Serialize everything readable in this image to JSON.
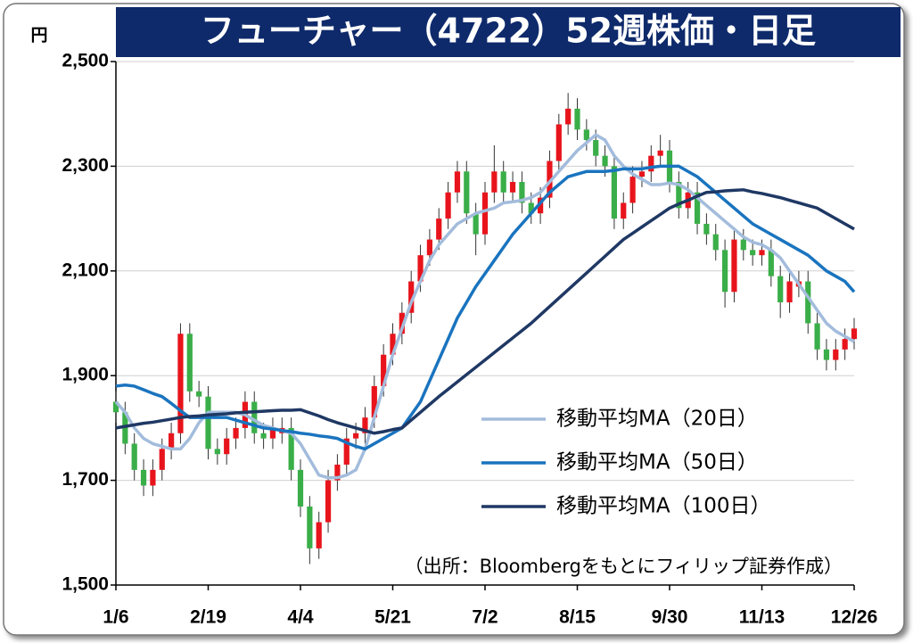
{
  "chart_data": {
    "type": "candlestick",
    "title": "フューチャー（4722）52週株価・日足",
    "y_unit": "円",
    "source": "（出所：Bloombergをもとにフィリップ証券作成）",
    "categories": [
      "1/6",
      null,
      null,
      null,
      null,
      null,
      null,
      null,
      null,
      null,
      "2/19",
      null,
      null,
      null,
      null,
      null,
      null,
      null,
      null,
      null,
      "4/4",
      null,
      null,
      null,
      null,
      null,
      null,
      null,
      null,
      null,
      "5/21",
      null,
      null,
      null,
      null,
      null,
      null,
      null,
      null,
      null,
      "7/2",
      null,
      null,
      null,
      null,
      null,
      null,
      null,
      null,
      null,
      "8/15",
      null,
      null,
      null,
      null,
      null,
      null,
      null,
      null,
      null,
      "9/30",
      null,
      null,
      null,
      null,
      null,
      null,
      null,
      null,
      null,
      "11/13",
      null,
      null,
      null,
      null,
      null,
      null,
      null,
      null,
      null,
      "12/26"
    ],
    "open": [
      1850,
      1830,
      1770,
      1720,
      1690,
      1720,
      1760,
      1790,
      1980,
      1870,
      1860,
      1760,
      1750,
      1780,
      1800,
      1850,
      1790,
      1780,
      1790,
      1800,
      1720,
      1650,
      1570,
      1620,
      1700,
      1730,
      1780,
      1790,
      1820,
      1880,
      1940,
      1980,
      2020,
      2080,
      2130,
      2160,
      2200,
      2250,
      2290,
      2210,
      2170,
      2250,
      2290,
      2250,
      2270,
      2230,
      2210,
      2240,
      2310,
      2380,
      2410,
      2370,
      2350,
      2320,
      2300,
      2200,
      2230,
      2280,
      2290,
      2320,
      2330,
      2270,
      2220,
      2250,
      2190,
      2170,
      2140,
      2060,
      2160,
      2140,
      2130,
      2140,
      2090,
      2040,
      2070,
      2080,
      2000,
      1950,
      1930,
      1950,
      1970
    ],
    "high": [
      1870,
      1850,
      1790,
      1740,
      1740,
      1780,
      1810,
      2000,
      2000,
      1890,
      1880,
      1780,
      1800,
      1820,
      1870,
      1870,
      1810,
      1820,
      1820,
      1820,
      1740,
      1670,
      1640,
      1720,
      1750,
      1800,
      1810,
      1840,
      1900,
      1960,
      2000,
      2040,
      2100,
      2150,
      2180,
      2220,
      2270,
      2310,
      2310,
      2230,
      2270,
      2340,
      2310,
      2290,
      2290,
      2250,
      2260,
      2330,
      2400,
      2440,
      2430,
      2390,
      2370,
      2340,
      2320,
      2250,
      2300,
      2310,
      2340,
      2360,
      2350,
      2290,
      2270,
      2270,
      2210,
      2190,
      2160,
      2180,
      2180,
      2160,
      2160,
      2160,
      2110,
      2100,
      2100,
      2100,
      2020,
      1970,
      1970,
      1990,
      2010
    ],
    "low": [
      1810,
      1750,
      1700,
      1670,
      1670,
      1700,
      1740,
      1770,
      1850,
      1840,
      1740,
      1730,
      1730,
      1760,
      1780,
      1770,
      1760,
      1760,
      1770,
      1700,
      1630,
      1540,
      1550,
      1600,
      1680,
      1710,
      1760,
      1770,
      1800,
      1860,
      1920,
      1960,
      2000,
      2060,
      2110,
      2140,
      2180,
      2230,
      2190,
      2130,
      2150,
      2230,
      2230,
      2230,
      2210,
      2190,
      2190,
      2220,
      2290,
      2360,
      2350,
      2330,
      2300,
      2280,
      2180,
      2180,
      2210,
      2260,
      2270,
      2300,
      2250,
      2200,
      2200,
      2170,
      2150,
      2120,
      2030,
      2040,
      2120,
      2110,
      2110,
      2070,
      2010,
      2020,
      2050,
      1980,
      1930,
      1910,
      1910,
      1930,
      1950
    ],
    "close": [
      1830,
      1770,
      1720,
      1690,
      1720,
      1760,
      1790,
      1980,
      1870,
      1860,
      1760,
      1750,
      1780,
      1800,
      1850,
      1790,
      1780,
      1800,
      1800,
      1720,
      1650,
      1570,
      1620,
      1700,
      1730,
      1780,
      1790,
      1820,
      1880,
      1940,
      1980,
      2020,
      2080,
      2130,
      2160,
      2200,
      2250,
      2290,
      2210,
      2170,
      2250,
      2290,
      2250,
      2270,
      2230,
      2210,
      2240,
      2310,
      2380,
      2410,
      2370,
      2350,
      2320,
      2300,
      2200,
      2230,
      2280,
      2290,
      2320,
      2330,
      2270,
      2220,
      2250,
      2190,
      2170,
      2140,
      2060,
      2160,
      2140,
      2130,
      2140,
      2090,
      2040,
      2080,
      2080,
      2000,
      1950,
      1930,
      1950,
      1970,
      1990
    ],
    "up_color": "#e8141c",
    "down_color": "#3aae48",
    "series": [
      {
        "name": "移動平均MA（20日）",
        "color": "#a3bcdc",
        "values": [
          1850,
          1830,
          1800,
          1780,
          1770,
          1765,
          1760,
          1760,
          1780,
          1810,
          1830,
          1830,
          1830,
          1830,
          1825,
          1815,
          1805,
          1800,
          1795,
          1790,
          1770,
          1740,
          1710,
          1705,
          1705,
          1710,
          1720,
          1760,
          1820,
          1880,
          1940,
          1990,
          2040,
          2080,
          2120,
          2150,
          2170,
          2190,
          2200,
          2210,
          2215,
          2220,
          2230,
          2232,
          2235,
          2240,
          2250,
          2270,
          2290,
          2310,
          2330,
          2345,
          2360,
          2350,
          2320,
          2300,
          2285,
          2275,
          2265,
          2265,
          2268,
          2265,
          2255,
          2240,
          2225,
          2210,
          2195,
          2180,
          2165,
          2155,
          2150,
          2140,
          2125,
          2100,
          2075,
          2050,
          2025,
          2000,
          1985,
          1975,
          1965
        ]
      },
      {
        "name": "移動平均MA（50日）",
        "color": "#1a74bf",
        "values": [
          1880,
          1882,
          1880,
          1873,
          1866,
          1860,
          1847,
          1833,
          1820,
          1820,
          1820,
          1820,
          1820,
          1815,
          1810,
          1805,
          1800,
          1798,
          1795,
          1793,
          1790,
          1788,
          1785,
          1783,
          1780,
          1772,
          1765,
          1760,
          1770,
          1780,
          1790,
          1800,
          1825,
          1850,
          1890,
          1930,
          1970,
          2010,
          2040,
          2070,
          2095,
          2120,
          2145,
          2170,
          2190,
          2210,
          2230,
          2250,
          2265,
          2280,
          2285,
          2290,
          2290,
          2290,
          2292,
          2295,
          2295,
          2295,
          2298,
          2300,
          2300,
          2300,
          2290,
          2280,
          2265,
          2250,
          2235,
          2220,
          2205,
          2190,
          2180,
          2170,
          2160,
          2150,
          2140,
          2130,
          2115,
          2100,
          2090,
          2080,
          2060
        ]
      },
      {
        "name": "移動平均MA（100日）",
        "color": "#1f3864",
        "values": [
          1800,
          1803,
          1806,
          1809,
          1811,
          1814,
          1817,
          1820,
          1822,
          1823,
          1825,
          1826,
          1827,
          1829,
          1830,
          1831,
          1832,
          1833,
          1834,
          1834,
          1835,
          1829,
          1823,
          1816,
          1810,
          1805,
          1800,
          1795,
          1790,
          1793,
          1797,
          1800,
          1815,
          1830,
          1845,
          1860,
          1874,
          1888,
          1902,
          1916,
          1930,
          1944,
          1958,
          1972,
          1986,
          2000,
          2016,
          2032,
          2048,
          2064,
          2080,
          2096,
          2112,
          2128,
          2144,
          2160,
          2172,
          2184,
          2196,
          2208,
          2220,
          2228,
          2235,
          2243,
          2250,
          2251,
          2253,
          2254,
          2255,
          2251,
          2248,
          2244,
          2240,
          2235,
          2230,
          2225,
          2220,
          2210,
          2200,
          2190,
          2180
        ]
      }
    ],
    "ylim": [
      1500,
      2500
    ],
    "yticks": [
      {
        "value": 1500,
        "label": "1,500"
      },
      {
        "value": 1700,
        "label": "1,700"
      },
      {
        "value": 1900,
        "label": "1,900"
      },
      {
        "value": 2100,
        "label": "2,100"
      },
      {
        "value": 2300,
        "label": "2,300"
      },
      {
        "value": 2500,
        "label": "2,500"
      }
    ],
    "grid": true,
    "legend": "lower right"
  }
}
